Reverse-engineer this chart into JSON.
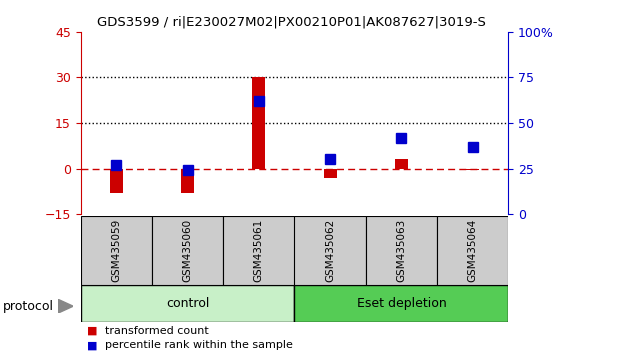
{
  "title": "GDS3599 / ri|E230027M02|PX00210P01|AK087627|3019-S",
  "samples": [
    "GSM435059",
    "GSM435060",
    "GSM435061",
    "GSM435062",
    "GSM435063",
    "GSM435064"
  ],
  "red_values": [
    -8,
    -8,
    30,
    -3,
    3,
    -0.5
  ],
  "blue_values": [
    27,
    24,
    62,
    30,
    42,
    37
  ],
  "left_ylim": [
    -15,
    45
  ],
  "right_ylim": [
    0,
    100
  ],
  "left_yticks": [
    -15,
    0,
    15,
    30,
    45
  ],
  "right_yticks": [
    0,
    25,
    50,
    75,
    100
  ],
  "right_yticklabels": [
    "0",
    "25",
    "50",
    "75",
    "100%"
  ],
  "hlines": [
    15,
    30
  ],
  "red_color": "#CC0000",
  "blue_color": "#0000CC",
  "dashed_line_color": "#CC0000",
  "dotted_line_color": "#000000",
  "bar_width": 0.18,
  "marker_size": 7,
  "group_defs": [
    {
      "label": "control",
      "start": 0,
      "end": 3,
      "color": "#C8F0C8"
    },
    {
      "label": "Eset depletion",
      "start": 3,
      "end": 6,
      "color": "#55CC55"
    }
  ],
  "sample_box_color": "#CCCCCC",
  "fig_width": 6.2,
  "fig_height": 3.54,
  "dpi": 100
}
